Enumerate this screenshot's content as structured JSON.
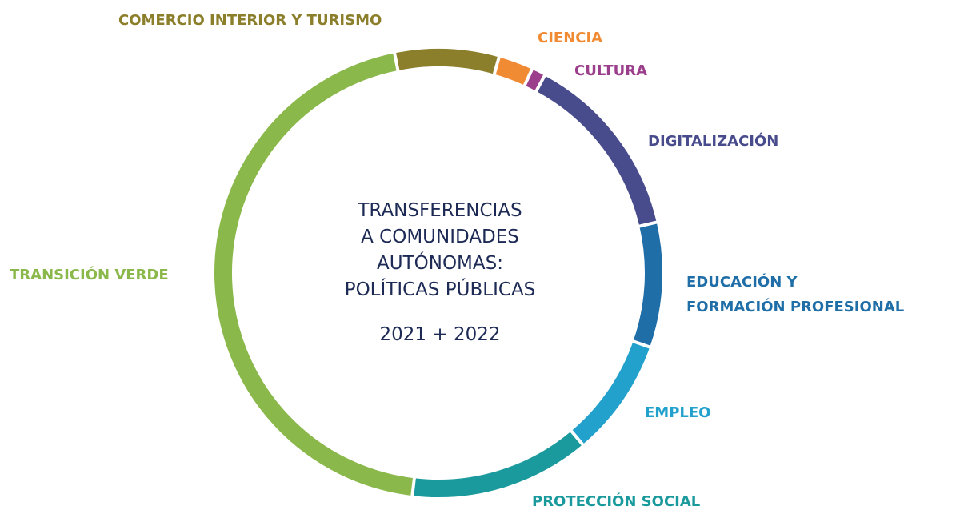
{
  "chart_data": {
    "type": "donut",
    "title": "TRANSFERENCIAS\nA COMUNIDADES\nAUTÓNOMAS:\nPOLÍTICAS PÚBLICAS",
    "subtitle": "2021 + 2022",
    "categories": [
      "COMERCIO INTERIOR Y TURISMO",
      "CIENCIA",
      "CULTURA",
      "DIGITALIZACIÓN",
      "EDUCACIÓN Y\nFORMACIÓN PROFESIONAL",
      "EMPLEO",
      "PROTECCIÓN SOCIAL",
      "TRANSICIÓN VERDE"
    ],
    "values": [
      7.5,
      2.5,
      1,
      13.5,
      9,
      8.5,
      13,
      45
    ],
    "colors": [
      "#8b7f2b",
      "#f18b33",
      "#9b3f8c",
      "#484b8c",
      "#1f6ea8",
      "#22a1cd",
      "#1a9a9d",
      "#8bb84a"
    ]
  }
}
